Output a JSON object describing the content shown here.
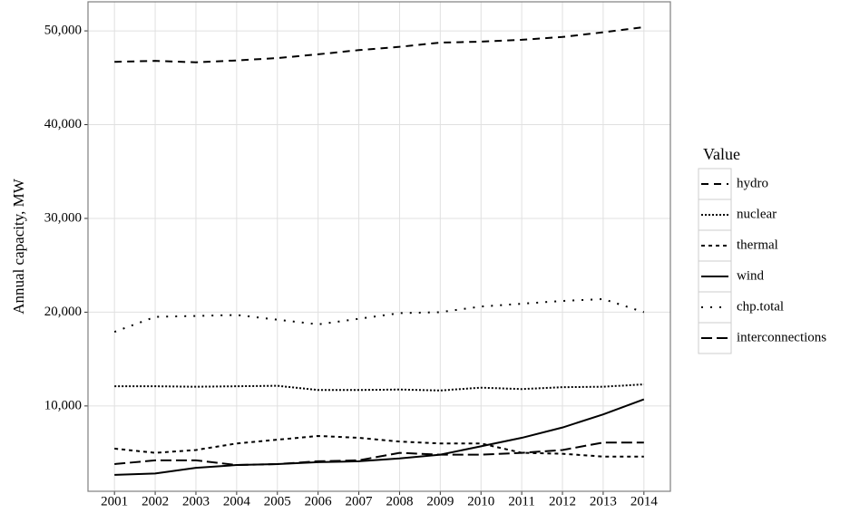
{
  "chart_data": {
    "type": "line",
    "y_label": "Annual capacity, MW",
    "legend_title": "Value",
    "legend_position": "right",
    "grid": true,
    "x": [
      2001,
      2002,
      2003,
      2004,
      2005,
      2006,
      2007,
      2008,
      2009,
      2010,
      2011,
      2012,
      2013,
      2014
    ],
    "xlim": [
      2000.35,
      2014.65
    ],
    "xticks": [
      2001,
      2002,
      2003,
      2004,
      2005,
      2006,
      2007,
      2008,
      2009,
      2010,
      2011,
      2012,
      2013,
      2014
    ],
    "ylim": [
      900,
      53100
    ],
    "yticks": [
      {
        "value": 10000,
        "label": "10,000"
      },
      {
        "value": 20000,
        "label": "20,000"
      },
      {
        "value": 30000,
        "label": "30,000"
      },
      {
        "value": 40000,
        "label": "40,000"
      },
      {
        "value": 50000,
        "label": "50,000"
      }
    ],
    "series": [
      {
        "name": "hydro",
        "color": "#000000",
        "dash": "8 6",
        "values": [
          46700,
          46800,
          46650,
          46850,
          47100,
          47500,
          47950,
          48300,
          48750,
          48850,
          49050,
          49350,
          49850,
          50400
        ]
      },
      {
        "name": "nuclear",
        "color": "#000000",
        "dash": "2 2",
        "values": [
          12100,
          12100,
          12050,
          12100,
          12150,
          11700,
          11700,
          11750,
          11650,
          11950,
          11800,
          12000,
          12050,
          12300
        ]
      },
      {
        "name": "thermal",
        "color": "#000000",
        "dash": "4 4",
        "values": [
          5450,
          5000,
          5300,
          6000,
          6400,
          6800,
          6600,
          6200,
          6000,
          6000,
          5000,
          4900,
          4600,
          4600
        ]
      },
      {
        "name": "wind",
        "color": "#000000",
        "dash": "none",
        "values": [
          2650,
          2800,
          3400,
          3700,
          3800,
          4000,
          4100,
          4400,
          4800,
          5700,
          6600,
          7700,
          9100,
          10700
        ]
      },
      {
        "name": "chp.total",
        "color": "#000000",
        "dash": "2 8",
        "values": [
          17900,
          19500,
          19600,
          19700,
          19200,
          18700,
          19300,
          19900,
          20000,
          20600,
          20900,
          21200,
          21400,
          20000
        ]
      },
      {
        "name": "interconnections",
        "color": "#000000",
        "dash": "12 5",
        "values": [
          3800,
          4200,
          4200,
          3700,
          3800,
          4100,
          4200,
          5000,
          4800,
          4800,
          5000,
          5300,
          6100,
          6100
        ]
      }
    ]
  }
}
